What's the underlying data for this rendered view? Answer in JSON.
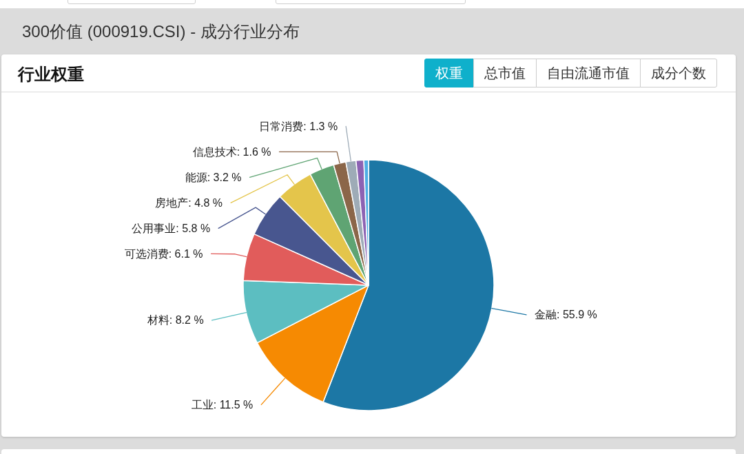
{
  "chart_data": {
    "type": "pie",
    "title": "300价值 (000919.CSI) - 成分行业分布",
    "subtitle": "行业权重",
    "categories": [
      "金融",
      "工业",
      "材料",
      "可选消费",
      "公用事业",
      "房地产",
      "能源",
      "信息技术",
      "日常消费",
      null,
      null
    ],
    "values": [
      55.9,
      11.5,
      8.2,
      6.1,
      5.8,
      4.8,
      3.2,
      1.6,
      1.3,
      1.0,
      0.6
    ],
    "colors": [
      "#1c77a5",
      "#f68a02",
      "#5cbec1",
      "#e15c5b",
      "#48568f",
      "#e4c54b",
      "#5fa473",
      "#8b6649",
      "#9eabb7",
      "#8c62b3",
      "#4faee4"
    ],
    "value_labels": [
      ": 55.9 %",
      ": 11.5 %",
      ": 8.2 %",
      ": 6.1 %",
      ": 5.8 %",
      ": 4.8 %",
      ": 3.2 %",
      ": 1.6 %",
      ": 1.3 %",
      null,
      null
    ],
    "annotations": [
      "权重",
      "总市值",
      "自由流通市值",
      "成分个数"
    ]
  }
}
